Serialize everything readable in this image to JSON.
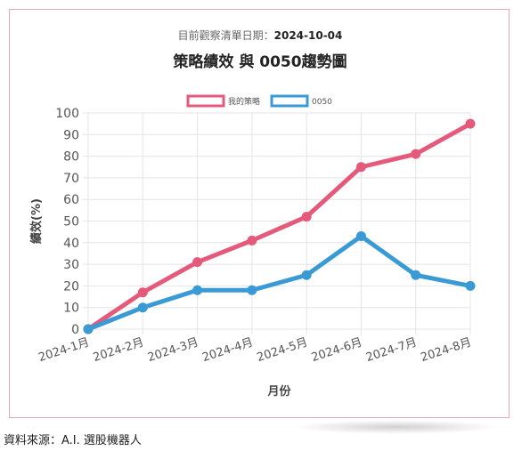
{
  "header": {
    "subtitle_label": "目前觀察清單日期：",
    "subtitle_date": "2024-10-04",
    "title": "策略績效 與 0050趨勢圖"
  },
  "footer": {
    "source": "資料來源：A.I. 選股機器人"
  },
  "colors": {
    "strategy": "#e55a7b",
    "benchmark": "#3a9ad5",
    "border": "#e9a5b7",
    "grid": "#e4e4e4"
  },
  "chart_data": {
    "type": "line",
    "categories": [
      "2024-1月",
      "2024-2月",
      "2024-3月",
      "2024-4月",
      "2024-5月",
      "2024-6月",
      "2024-7月",
      "2024-8月"
    ],
    "series": [
      {
        "name": "我的策略",
        "color": "#e55a7b",
        "values": [
          0,
          17,
          31,
          41,
          52,
          75,
          81,
          95
        ]
      },
      {
        "name": "0050",
        "color": "#3a9ad5",
        "values": [
          0,
          10,
          18,
          18,
          25,
          43,
          25,
          20
        ]
      }
    ],
    "xlabel": "月份",
    "ylabel": "績效(%)",
    "ylim": [
      0,
      100
    ],
    "yticks": [
      0,
      10,
      20,
      30,
      40,
      50,
      60,
      70,
      80,
      90,
      100
    ],
    "grid": true,
    "legend_position": "top"
  }
}
